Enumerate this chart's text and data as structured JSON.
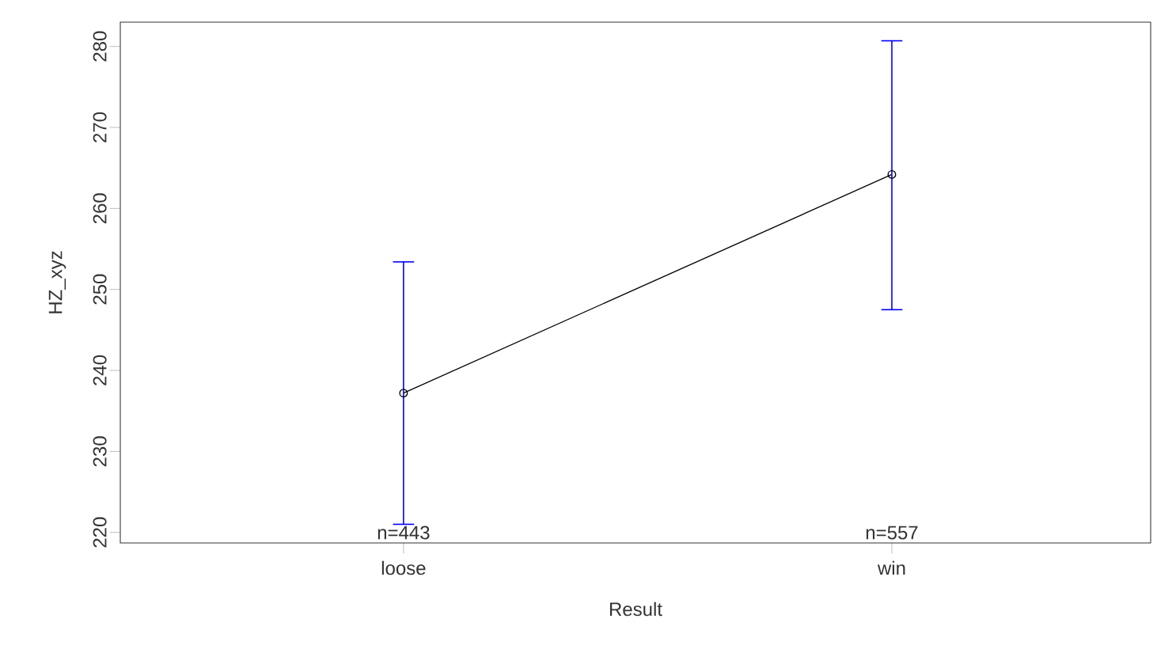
{
  "chart_data": {
    "type": "line",
    "xlabel": "Result",
    "ylabel": "HZ_xyz",
    "categories": [
      "loose",
      "win"
    ],
    "series": [
      {
        "color": "#000000",
        "values": [
          237.2,
          264.2
        ],
        "errors": [
          [
            221.0,
            253.4
          ],
          [
            247.5,
            280.7
          ]
        ]
      }
    ],
    "ylim": [
      218.7,
      283.0
    ],
    "yticks": [
      220,
      230,
      240,
      250,
      260,
      270,
      280
    ],
    "marker": "circle",
    "line_style": "solid",
    "annotations": [
      "n=443",
      "n=557"
    ]
  }
}
